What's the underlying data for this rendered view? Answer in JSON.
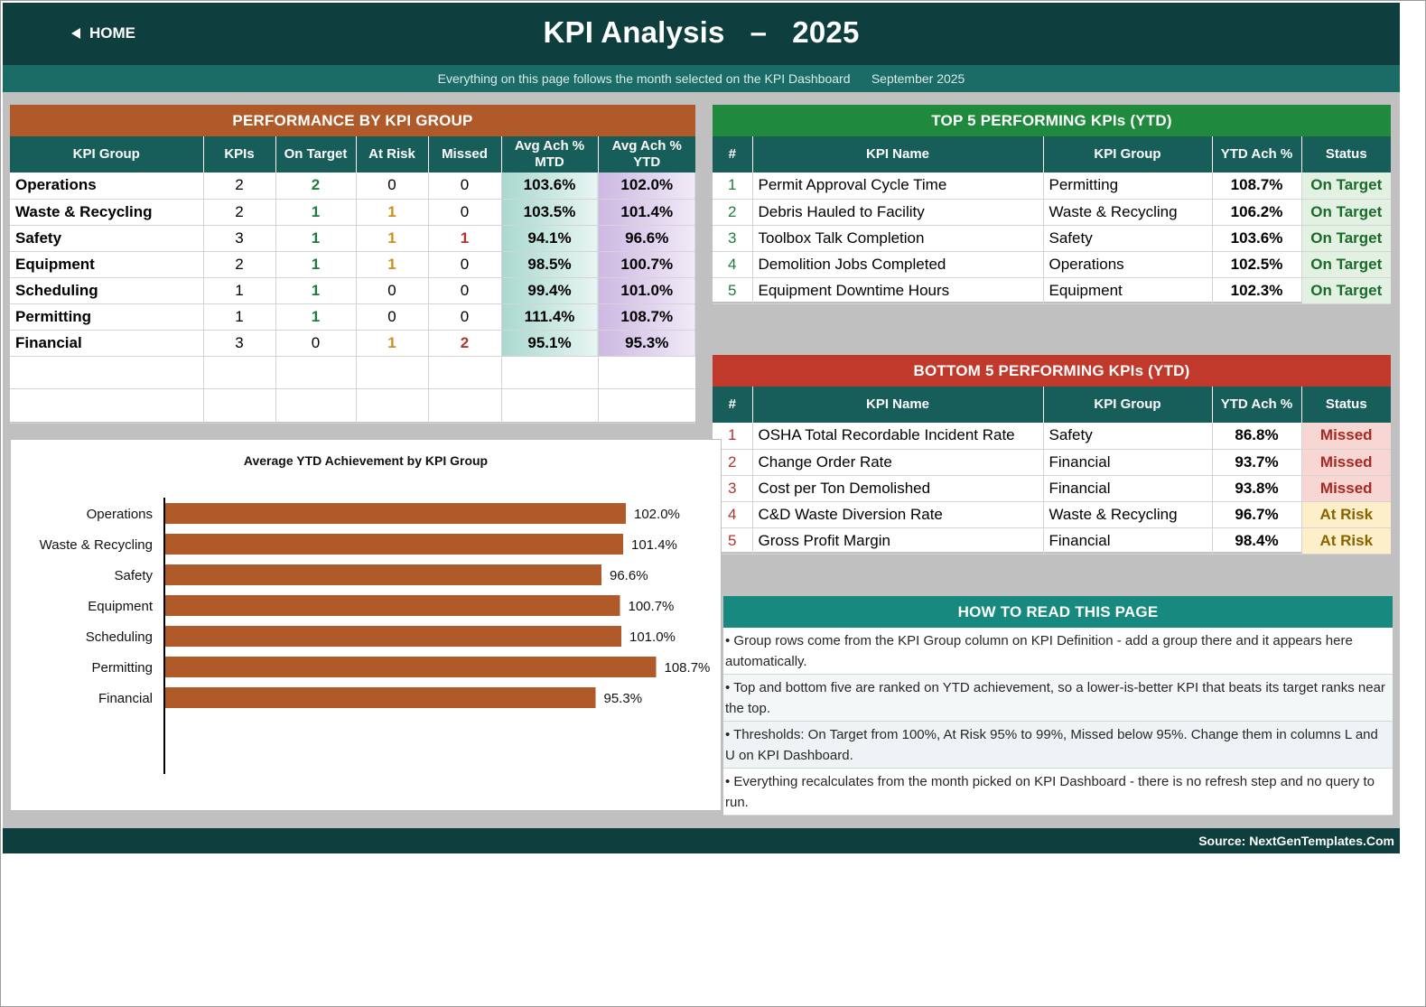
{
  "header": {
    "home_label": "HOME",
    "title": "KPI Analysis   –   2025",
    "subtitle": "Everything on this page follows the month selected on the KPI Dashboard      September 2025"
  },
  "colors": {
    "dark_teal": "#0e3e3e",
    "teal": "#175e5b",
    "orange": "#b05a2a",
    "green": "#1f8a3e",
    "red": "#c0392b",
    "howto_teal": "#17897f",
    "bar": "#b05a2a"
  },
  "performance": {
    "heading": "PERFORMANCE BY KPI GROUP",
    "columns": [
      "KPI Group",
      "KPIs",
      "On Target",
      "At Risk",
      "Missed",
      "Avg Ach % MTD",
      "Avg Ach % YTD"
    ],
    "rows": [
      {
        "group": "Operations",
        "kpis": "2",
        "on_target": "2",
        "at_risk": "0",
        "missed": "0",
        "mtd": "103.6%",
        "ytd": "102.0%"
      },
      {
        "group": "Waste & Recycling",
        "kpis": "2",
        "on_target": "1",
        "at_risk": "1",
        "missed": "0",
        "mtd": "103.5%",
        "ytd": "101.4%"
      },
      {
        "group": "Safety",
        "kpis": "3",
        "on_target": "1",
        "at_risk": "1",
        "missed": "1",
        "mtd": "94.1%",
        "ytd": "96.6%"
      },
      {
        "group": "Equipment",
        "kpis": "2",
        "on_target": "1",
        "at_risk": "1",
        "missed": "0",
        "mtd": "98.5%",
        "ytd": "100.7%"
      },
      {
        "group": "Scheduling",
        "kpis": "1",
        "on_target": "1",
        "at_risk": "0",
        "missed": "0",
        "mtd": "99.4%",
        "ytd": "101.0%"
      },
      {
        "group": "Permitting",
        "kpis": "1",
        "on_target": "1",
        "at_risk": "0",
        "missed": "0",
        "mtd": "111.4%",
        "ytd": "108.7%"
      },
      {
        "group": "Financial",
        "kpis": "3",
        "on_target": "0",
        "at_risk": "1",
        "missed": "2",
        "mtd": "95.1%",
        "ytd": "95.3%"
      }
    ]
  },
  "top5": {
    "heading": "TOP 5 PERFORMING KPIs  (YTD)",
    "columns": [
      "#",
      "KPI Name",
      "KPI Group",
      "YTD Ach %",
      "Status"
    ],
    "rows": [
      {
        "rank": "1",
        "name": "Permit Approval Cycle Time",
        "group": "Permitting",
        "ytd": "108.7%",
        "status": "On Target"
      },
      {
        "rank": "2",
        "name": "Debris Hauled to Facility",
        "group": "Waste & Recycling",
        "ytd": "106.2%",
        "status": "On Target"
      },
      {
        "rank": "3",
        "name": "Toolbox Talk Completion",
        "group": "Safety",
        "ytd": "103.6%",
        "status": "On Target"
      },
      {
        "rank": "4",
        "name": "Demolition Jobs Completed",
        "group": "Operations",
        "ytd": "102.5%",
        "status": "On Target"
      },
      {
        "rank": "5",
        "name": "Equipment Downtime Hours",
        "group": "Equipment",
        "ytd": "102.3%",
        "status": "On Target"
      }
    ]
  },
  "bottom5": {
    "heading": "BOTTOM 5 PERFORMING KPIs  (YTD)",
    "columns": [
      "#",
      "KPI Name",
      "KPI Group",
      "YTD Ach %",
      "Status"
    ],
    "rows": [
      {
        "rank": "1",
        "name": "OSHA Total Recordable Incident Rate",
        "group": "Safety",
        "ytd": "86.8%",
        "status": "Missed"
      },
      {
        "rank": "2",
        "name": "Change Order Rate",
        "group": "Financial",
        "ytd": "93.7%",
        "status": "Missed"
      },
      {
        "rank": "3",
        "name": "Cost per Ton Demolished",
        "group": "Financial",
        "ytd": "93.8%",
        "status": "Missed"
      },
      {
        "rank": "4",
        "name": "C&D Waste Diversion Rate",
        "group": "Waste & Recycling",
        "ytd": "96.7%",
        "status": "At Risk"
      },
      {
        "rank": "5",
        "name": "Gross Profit Margin",
        "group": "Financial",
        "ytd": "98.4%",
        "status": "At Risk"
      }
    ]
  },
  "howto": {
    "heading": "HOW TO READ THIS PAGE",
    "items": [
      "•  Group rows come from the KPI Group column on KPI Definition - add a group there and it appears here automatically.",
      "•  Top and bottom five are ranked on YTD achievement, so a lower-is-better KPI that beats its target ranks near the top.",
      "•  Thresholds: On Target from 100%, At Risk 95% to 99%, Missed below 95%. Change them in columns L and U on KPI Dashboard.",
      "•  Everything recalculates from the month picked on KPI Dashboard - there is no refresh step and no query to run."
    ]
  },
  "footer": {
    "source": "Source: NextGenTemplates.Com"
  },
  "chart_data": {
    "type": "bar",
    "orientation": "horizontal",
    "title": "Average YTD Achievement by KPI Group",
    "categories": [
      "Operations",
      "Waste & Recycling",
      "Safety",
      "Equipment",
      "Scheduling",
      "Permitting",
      "Financial"
    ],
    "values": [
      102.0,
      101.4,
      96.6,
      100.7,
      101.0,
      108.7,
      95.3
    ],
    "labels": [
      "102.0%",
      "101.4%",
      "96.6%",
      "100.7%",
      "101.0%",
      "108.7%",
      "95.3%"
    ],
    "xlim": [
      0,
      120
    ],
    "grid": false,
    "legend": "none"
  }
}
